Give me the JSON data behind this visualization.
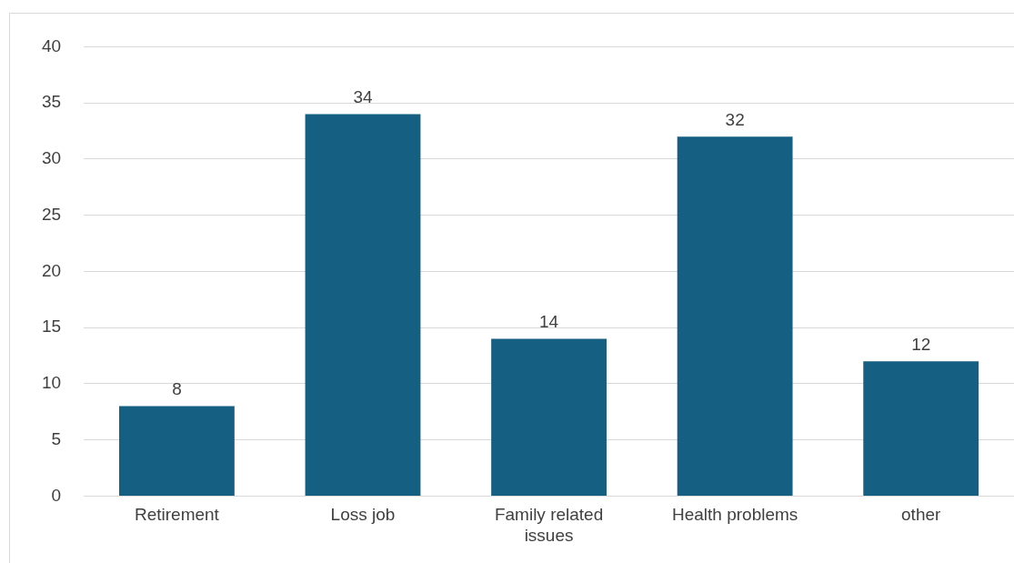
{
  "chart_data": {
    "type": "bar",
    "categories": [
      "Retirement",
      "Loss job",
      "Family related issues",
      "Health problems",
      "other"
    ],
    "values": [
      8,
      34,
      14,
      32,
      12
    ],
    "color": "#156082",
    "ylim": [
      0,
      40
    ],
    "yticks": [
      0,
      5,
      10,
      15,
      20,
      25,
      30,
      35,
      40
    ],
    "grid": "y",
    "data_labels": true
  }
}
